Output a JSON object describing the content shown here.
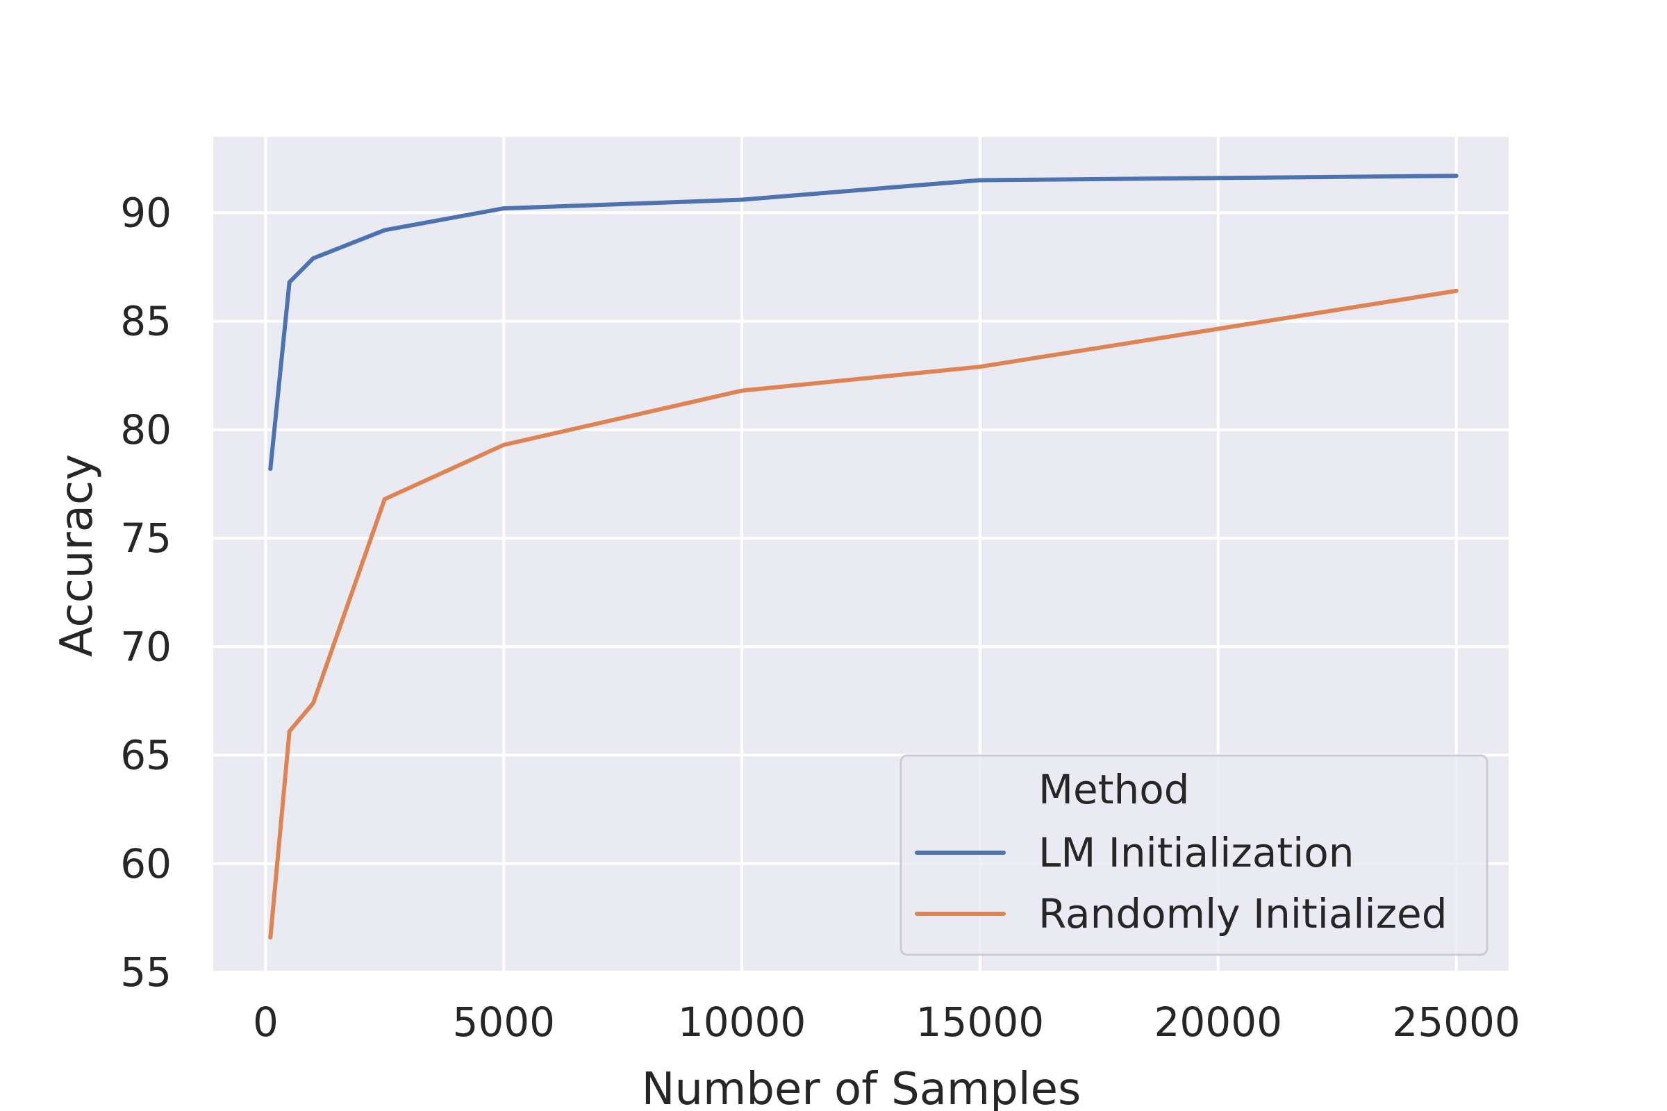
{
  "chart_data": {
    "type": "line",
    "xlabel": "Number of Samples",
    "ylabel": "Accuracy",
    "xlim": [
      -1100,
      26100
    ],
    "ylim": [
      55,
      93.5
    ],
    "xticks": [
      0,
      5000,
      10000,
      15000,
      20000,
      25000
    ],
    "yticks": [
      55,
      60,
      65,
      70,
      75,
      80,
      85,
      90
    ],
    "grid": true,
    "legend": {
      "title": "Method",
      "position": "bottom-right"
    },
    "x": [
      100,
      500,
      1000,
      2500,
      5000,
      10000,
      15000,
      25000
    ],
    "series": [
      {
        "name": "LM Initialization",
        "color": "#4c72b0",
        "values": [
          78.2,
          86.8,
          87.9,
          89.2,
          90.2,
          90.6,
          91.5,
          91.7
        ]
      },
      {
        "name": "Randomly Initialized",
        "color": "#dd8452",
        "values": [
          56.6,
          66.1,
          67.4,
          76.8,
          79.3,
          81.8,
          82.9,
          86.4
        ]
      }
    ],
    "colors": {
      "plot_background": "#eaeaf2",
      "grid": "#ffffff",
      "text": "#262626"
    }
  }
}
